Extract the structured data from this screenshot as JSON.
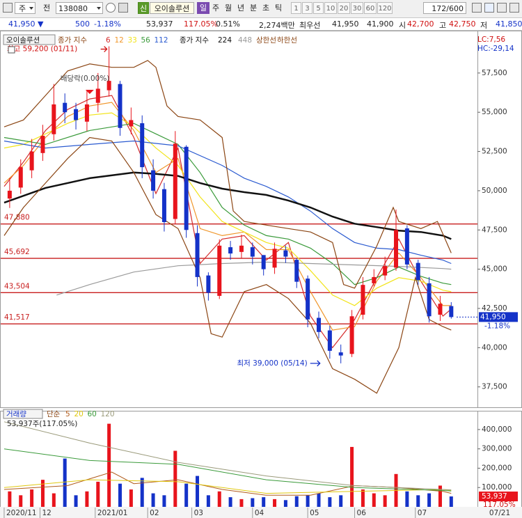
{
  "toolbar": {
    "market": "주",
    "scope": "전",
    "code": "138080",
    "badge": "신",
    "name": "오이솔루션",
    "periods": [
      "일",
      "주",
      "월",
      "년",
      "분",
      "초",
      "틱"
    ],
    "intervals": [
      1,
      3,
      5,
      10,
      20,
      30,
      60,
      120
    ],
    "count": "172/600"
  },
  "info_bar": [
    {
      "text": "41,950 ▼",
      "color": "#1432c8"
    },
    {
      "text": "500",
      "color": "#1432c8"
    },
    {
      "text": "-1.18%",
      "color": "#1432c8"
    },
    {
      "text": "53,937",
      "color": "#222222"
    },
    {
      "text": "117.05%",
      "color": "#d01010"
    },
    {
      "text": "0.51%",
      "color": "#222222"
    },
    {
      "text": "2,274백만",
      "color": "#222222"
    },
    {
      "text": "최우선",
      "color": "#222222"
    },
    {
      "text": "41,950",
      "color": "#222222"
    },
    {
      "text": "41,900",
      "color": "#222222"
    },
    {
      "text": "시",
      "color": "#222222"
    },
    {
      "text": "42,700",
      "color": "#d01010"
    },
    {
      "text": "고",
      "color": "#222222"
    },
    {
      "text": "42,750",
      "color": "#d01010"
    },
    {
      "text": "저",
      "color": "#222222"
    },
    {
      "text": "41,850",
      "color": "#1432c8"
    }
  ],
  "chart_data": [
    {
      "type": "candlestick",
      "title": "오이솔루션",
      "legend_labels": [
        "종가 지수",
        "종가 지수"
      ],
      "up_color": "#e8141c",
      "down_color": "#1432c8",
      "x": [
        3,
        7,
        11,
        15,
        19,
        23,
        27,
        31,
        35,
        39,
        43,
        47,
        51,
        55,
        59,
        63,
        67,
        71,
        75,
        79,
        83,
        87,
        91,
        95,
        99,
        103,
        107,
        111,
        115,
        119,
        123,
        127,
        131,
        135,
        139,
        143,
        147,
        151,
        155,
        159,
        163
      ],
      "open": [
        49500,
        50200,
        51300,
        52400,
        53600,
        55600,
        55200,
        54400,
        55600,
        56400,
        56800,
        54100,
        54300,
        51300,
        50100,
        48200,
        52800,
        47300,
        44600,
        43300,
        46400,
        46100,
        46400,
        45900,
        45100,
        46200,
        45600,
        44400,
        41900,
        41100,
        39700,
        39600,
        42100,
        44100,
        44600,
        45100,
        47600,
        45400,
        44100,
        42100,
        42650
      ],
      "high": [
        50800,
        52000,
        53300,
        54200,
        56800,
        56200,
        55600,
        56400,
        57500,
        59200,
        57000,
        55300,
        54800,
        52000,
        50500,
        53800,
        52900,
        47800,
        44800,
        46900,
        46800,
        47200,
        46700,
        45900,
        46700,
        46500,
        45700,
        44600,
        42300,
        41400,
        40200,
        42400,
        44500,
        45000,
        45800,
        48800,
        47800,
        45600,
        44500,
        43300,
        42900
      ],
      "low": [
        48900,
        49800,
        50800,
        51900,
        53200,
        54300,
        53900,
        53800,
        55000,
        56000,
        53500,
        53600,
        50800,
        49500,
        47400,
        47900,
        47000,
        43900,
        43000,
        43100,
        45600,
        45700,
        45300,
        44600,
        44700,
        45400,
        43800,
        41300,
        40600,
        39300,
        39000,
        39400,
        41800,
        43900,
        44300,
        44900,
        45000,
        44000,
        41600,
        41700,
        41850
      ],
      "close": [
        50000,
        51500,
        52500,
        53500,
        55500,
        55000,
        54500,
        55500,
        56500,
        57000,
        54000,
        54500,
        51500,
        50000,
        48000,
        53000,
        47500,
        44500,
        43500,
        46500,
        46000,
        46500,
        45800,
        45000,
        46300,
        45800,
        44200,
        41800,
        41000,
        39800,
        39500,
        42000,
        44000,
        44500,
        45200,
        47500,
        45300,
        44300,
        42000,
        42800,
        41950
      ],
      "lines": [
        {
          "name": "6",
          "color": "#d42a2a",
          "group": 0,
          "x": [
            1,
            8,
            16,
            24,
            32,
            40,
            48,
            56,
            64,
            72,
            80,
            88,
            96,
            104,
            112,
            120,
            128,
            136,
            144,
            152,
            160,
            163
          ],
          "values": [
            50270,
            51830,
            53840,
            55180,
            55850,
            56070,
            53390,
            49820,
            52720,
            45360,
            46920,
            47140,
            45580,
            46700,
            42010,
            40000,
            41790,
            44460,
            46920,
            44240,
            42010,
            42460
          ]
        },
        {
          "name": "12",
          "color": "#f0962a",
          "group": 0,
          "x": [
            1,
            8,
            16,
            24,
            32,
            40,
            48,
            56,
            64,
            72,
            80,
            88,
            96,
            104,
            112,
            120,
            128,
            136,
            144,
            152,
            160,
            163
          ],
          "values": [
            50490,
            51610,
            53390,
            54730,
            55400,
            55630,
            53840,
            51160,
            52050,
            47590,
            47140,
            47370,
            46250,
            46250,
            43570,
            41120,
            41340,
            44240,
            46030,
            44460,
            42680,
            42680
          ]
        },
        {
          "name": "33",
          "color": "#f2e41a",
          "group": 0,
          "x": [
            1,
            8,
            16,
            24,
            32,
            40,
            48,
            56,
            64,
            72,
            80,
            88,
            96,
            104,
            112,
            120,
            128,
            136,
            144,
            152,
            160,
            163
          ],
          "values": [
            52720,
            52950,
            53620,
            54290,
            54820,
            54960,
            54070,
            52720,
            51610,
            49600,
            48040,
            47370,
            46700,
            46340,
            44910,
            43350,
            42680,
            43790,
            44460,
            44240,
            43660,
            43570
          ]
        },
        {
          "name": "56",
          "color": "#3a9a3a",
          "group": 0,
          "x": [
            1,
            16,
            32,
            48,
            56,
            64,
            72,
            80,
            88,
            96,
            104,
            112,
            120,
            128,
            136,
            144,
            152,
            160,
            163
          ],
          "values": [
            53390,
            52950,
            53840,
            54290,
            53620,
            52950,
            51160,
            48930,
            47810,
            47140,
            46920,
            46340,
            45360,
            44020,
            44460,
            45130,
            44550,
            44110,
            44020
          ]
        },
        {
          "name": "112",
          "color": "#2a5ad0",
          "group": 0,
          "x": [
            1,
            16,
            32,
            48,
            64,
            80,
            88,
            96,
            104,
            112,
            120,
            128,
            136,
            144,
            152,
            160,
            163
          ],
          "values": [
            53170,
            52720,
            52950,
            53170,
            52860,
            51610,
            50800,
            50270,
            49600,
            48700,
            47590,
            46700,
            46340,
            46250,
            45890,
            45580,
            45360
          ]
        },
        {
          "name": "224",
          "color": "#111111",
          "group": 1,
          "x": [
            1,
            16,
            32,
            48,
            56,
            64,
            72,
            80,
            88,
            96,
            104,
            112,
            120,
            128,
            136,
            144,
            152,
            160,
            163
          ],
          "values": [
            49240,
            50180,
            50800,
            51160,
            51070,
            50940,
            50490,
            50130,
            49910,
            49730,
            49370,
            48930,
            48350,
            47900,
            47680,
            47460,
            47370,
            47140,
            46920
          ]
        },
        {
          "name": "448",
          "color": "#9a9a9a",
          "group": 1,
          "x": [
            20,
            32,
            48,
            64,
            80,
            96,
            112,
            128,
            144,
            160,
            163
          ],
          "values": [
            43350,
            44020,
            44820,
            45220,
            45360,
            45450,
            45360,
            45270,
            45180,
            45040,
            45000
          ]
        },
        {
          "name": "상한선",
          "color": "#8b4513",
          "group": 2,
          "x": [
            1,
            8,
            16,
            24,
            32,
            40,
            48,
            53,
            56,
            60,
            64,
            72,
            80,
            84,
            88,
            96,
            104,
            112,
            120,
            124,
            128,
            136,
            142,
            144,
            152,
            158,
            163
          ],
          "values": [
            54070,
            54510,
            56070,
            57630,
            58080,
            57860,
            57860,
            58300,
            57860,
            55400,
            54730,
            54510,
            53390,
            48710,
            48040,
            47810,
            47590,
            47370,
            46700,
            44020,
            43790,
            46470,
            48930,
            48040,
            47590,
            48040,
            46030
          ]
        },
        {
          "name": "하한선",
          "color": "#8b4513",
          "group": 2,
          "x": [
            1,
            8,
            16,
            24,
            32,
            40,
            48,
            56,
            64,
            72,
            76,
            80,
            88,
            96,
            104,
            112,
            120,
            128,
            136,
            144,
            150,
            155,
            160,
            163
          ],
          "values": [
            47140,
            48930,
            50490,
            52050,
            53390,
            53170,
            51160,
            48480,
            47590,
            44460,
            40890,
            40670,
            43570,
            44020,
            43130,
            41560,
            38660,
            37990,
            37100,
            40000,
            44460,
            41790,
            41340,
            41120
          ]
        }
      ],
      "hlines": [
        {
          "value": 47880,
          "label": "47,880"
        },
        {
          "value": 45692,
          "label": "45,692"
        },
        {
          "value": 43504,
          "label": "43,504"
        },
        {
          "value": 41517,
          "label": "41,517"
        }
      ],
      "hline_color": "#c81e1e",
      "annotations": [
        {
          "text": "최고 59,200 (01/11)",
          "x": 39,
          "y": 59200,
          "color": "#d01010"
        },
        {
          "text": "최저 39,000 (05/14)",
          "x": 123,
          "y": 39000,
          "color": "#1432c8"
        },
        {
          "text": "배당락(0.00%)",
          "x": 32,
          "color": "#444444"
        }
      ],
      "lc": "LC:7,56",
      "hc": "HC:-29,14",
      "last_price": {
        "value": 41950,
        "label": "41,950"
      },
      "last_change": "-1.18%",
      "xlim": [
        0,
        172
      ],
      "ylim": [
        36200,
        60200
      ],
      "yticks": [
        {
          "value": 37500,
          "label": "37,500"
        },
        {
          "value": 40000,
          "label": "40,000"
        },
        {
          "value": 42500,
          "label": "42,500"
        },
        {
          "value": 45000,
          "label": "45,000"
        },
        {
          "value": 47500,
          "label": "47,500"
        },
        {
          "value": 50000,
          "label": "50,000"
        },
        {
          "value": 52500,
          "label": "52,500"
        },
        {
          "value": 55000,
          "label": "55,000"
        },
        {
          "value": 57500,
          "label": "57,500"
        }
      ]
    },
    {
      "type": "bar",
      "title": "거래량",
      "ma_label": "단순",
      "x": [
        3,
        7,
        11,
        15,
        19,
        23,
        27,
        31,
        35,
        39,
        43,
        47,
        51,
        55,
        59,
        63,
        67,
        71,
        75,
        79,
        83,
        87,
        91,
        95,
        99,
        103,
        107,
        111,
        115,
        119,
        123,
        127,
        131,
        135,
        139,
        143,
        147,
        151,
        155,
        159,
        163
      ],
      "values": [
        80000,
        60000,
        90000,
        140000,
        70000,
        250000,
        60000,
        80000,
        130000,
        430000,
        120000,
        90000,
        150000,
        70000,
        60000,
        290000,
        120000,
        160000,
        60000,
        80000,
        50000,
        40000,
        45000,
        50000,
        40000,
        35000,
        55000,
        60000,
        70000,
        50000,
        60000,
        310000,
        90000,
        70000,
        60000,
        170000,
        80000,
        60000,
        70000,
        110000,
        53937
      ],
      "lines": [
        {
          "name": "5",
          "color": "#b05a1a",
          "x": [
            1,
            24,
            40,
            48,
            64,
            80,
            96,
            112,
            128,
            144,
            160,
            163
          ],
          "values": [
            90000,
            110000,
            180000,
            120000,
            140000,
            90000,
            60000,
            60000,
            110000,
            100000,
            80000,
            70000
          ]
        },
        {
          "name": "20",
          "color": "#e0c810",
          "x": [
            1,
            32,
            64,
            96,
            128,
            160,
            163
          ],
          "values": [
            100000,
            140000,
            130000,
            70000,
            80000,
            90000,
            85000
          ]
        },
        {
          "name": "60",
          "color": "#3a9a3a",
          "x": [
            1,
            32,
            64,
            96,
            128,
            160,
            163
          ],
          "values": [
            300000,
            240000,
            220000,
            140000,
            100000,
            85000,
            82000
          ]
        },
        {
          "name": "120",
          "color": "#9a9a7a",
          "x": [
            1,
            32,
            64,
            96,
            128,
            160,
            163
          ],
          "values": [
            440000,
            330000,
            230000,
            160000,
            110000,
            90000,
            88000
          ]
        }
      ],
      "summary": "53,937주(117.05%)",
      "last_value": {
        "value": 53937,
        "label": "53,937"
      },
      "last_ratio": "117.05%",
      "xlim": [
        0,
        172
      ],
      "ylim": [
        0,
        497000
      ],
      "yticks": [
        {
          "value": 100000,
          "label": "100,000"
        },
        {
          "value": 200000,
          "label": "200,000"
        },
        {
          "value": 300000,
          "label": "300,000"
        },
        {
          "value": 400000,
          "label": "400,000"
        }
      ],
      "xticks": [
        {
          "value": 1,
          "label": "2020/11"
        },
        {
          "value": 14,
          "label": "12"
        },
        {
          "value": 34,
          "label": "2021/01"
        },
        {
          "value": 53,
          "label": "02"
        },
        {
          "value": 69,
          "label": "03"
        },
        {
          "value": 91,
          "label": "04"
        },
        {
          "value": 111,
          "label": "05"
        },
        {
          "value": 128,
          "label": "06"
        },
        {
          "value": 150,
          "label": "07"
        }
      ],
      "last_date": "07/21"
    }
  ]
}
